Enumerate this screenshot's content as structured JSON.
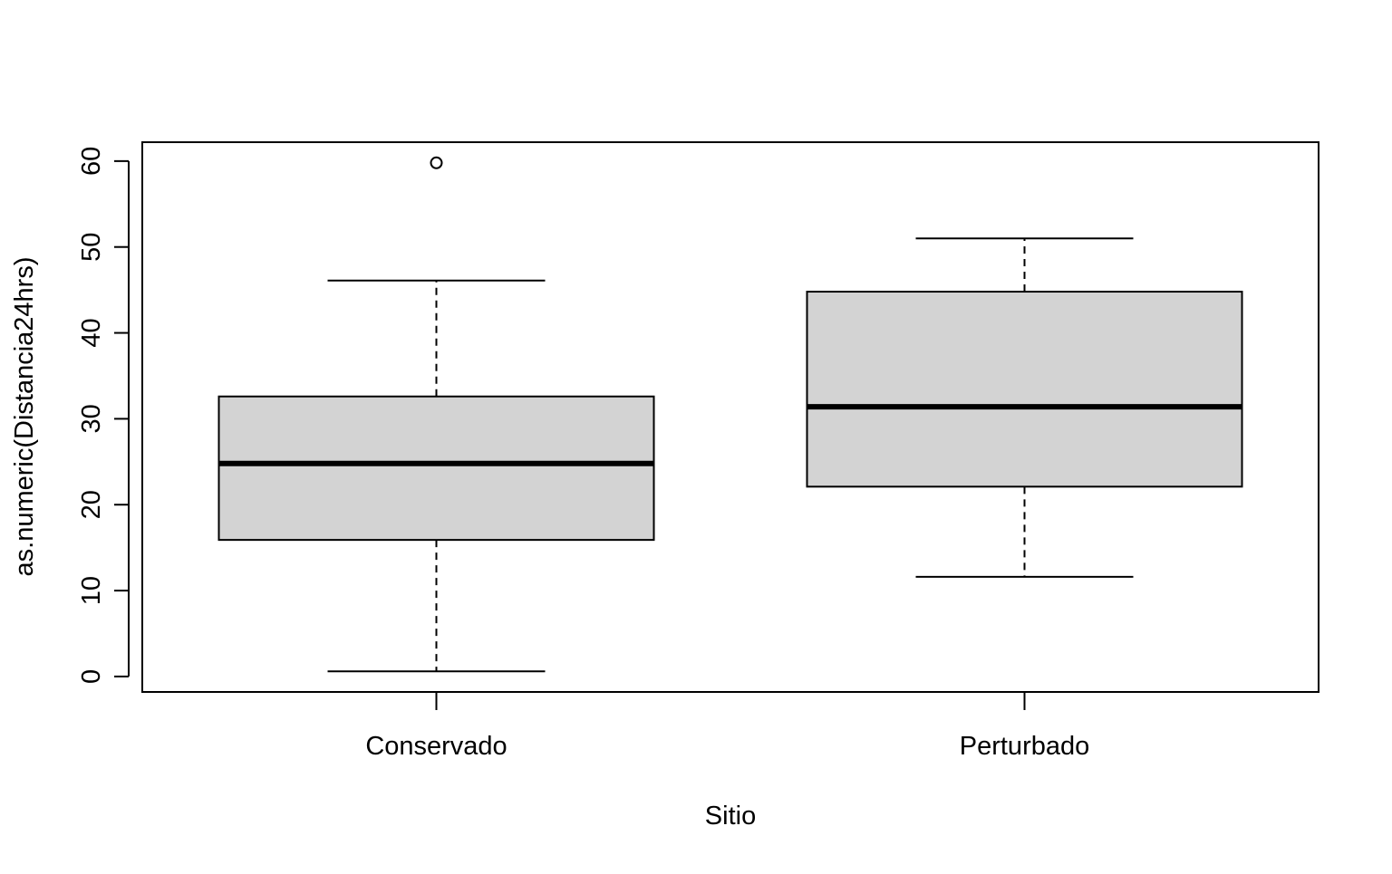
{
  "chart_data": {
    "type": "boxplot",
    "title": "",
    "xlabel": "Sitio",
    "ylabel": "as.numeric(Distancia24hrs)",
    "ylim": [
      -1.8,
      62.2
    ],
    "yticks": [
      0,
      10,
      20,
      30,
      40,
      50,
      60
    ],
    "grid": false,
    "categories": [
      "Conservado",
      "Perturbado"
    ],
    "boxes": [
      {
        "category": "Conservado",
        "whisker_low": 0.6,
        "q1": 15.9,
        "median": 24.8,
        "q3": 32.6,
        "whisker_high": 46.1,
        "outliers": [
          59.8
        ]
      },
      {
        "category": "Perturbado",
        "whisker_low": 11.6,
        "q1": 22.1,
        "median": 31.4,
        "q3": 44.8,
        "whisker_high": 51.0,
        "outliers": []
      }
    ],
    "colors": {
      "box_fill": "#d3d3d3",
      "stroke": "#000000"
    }
  }
}
